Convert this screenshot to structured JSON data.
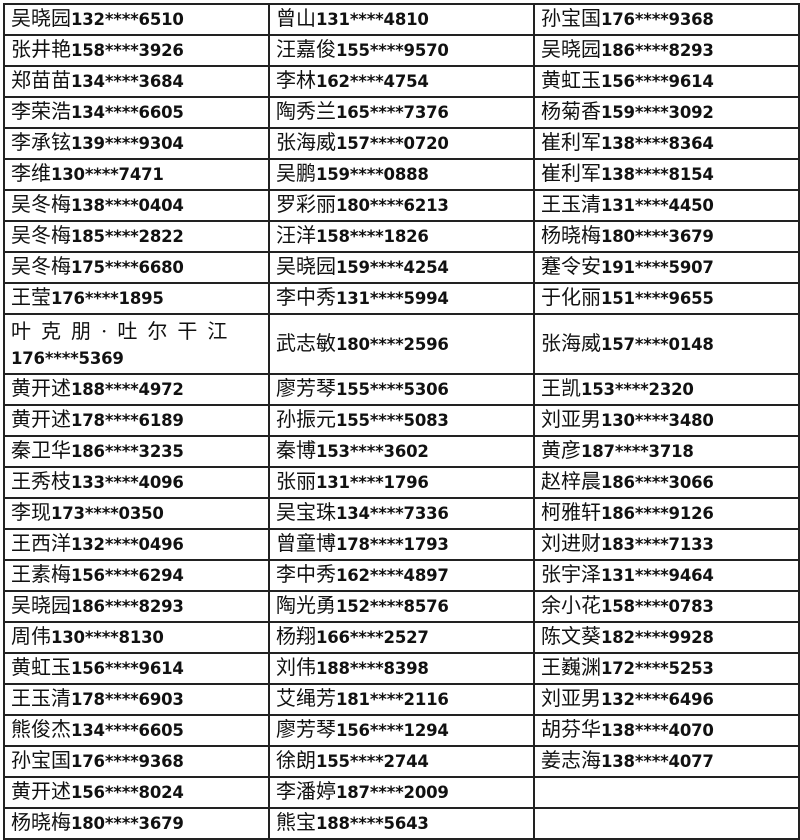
{
  "table": {
    "rows": [
      [
        {
          "name": "吴晓园",
          "phone": "132****6510"
        },
        {
          "name": "曾山",
          "phone": "131****4810"
        },
        {
          "name": "孙宝国",
          "phone": "176****9368"
        }
      ],
      [
        {
          "name": "张井艳",
          "phone": "158****3926"
        },
        {
          "name": "汪嘉俊",
          "phone": "155****9570"
        },
        {
          "name": "吴晓园",
          "phone": "186****8293"
        }
      ],
      [
        {
          "name": "郑苗苗",
          "phone": "134****3684"
        },
        {
          "name": "李林",
          "phone": "162****4754"
        },
        {
          "name": "黄虹玉",
          "phone": "156****9614"
        }
      ],
      [
        {
          "name": "李荣浩",
          "phone": "134****6605"
        },
        {
          "name": "陶秀兰",
          "phone": "165****7376"
        },
        {
          "name": "杨菊香",
          "phone": "159****3092"
        }
      ],
      [
        {
          "name": "李承铉",
          "phone": "139****9304"
        },
        {
          "name": "张海威",
          "phone": "157****0720"
        },
        {
          "name": "崔利军",
          "phone": "138****8364"
        }
      ],
      [
        {
          "name": "李维",
          "phone": "130****7471"
        },
        {
          "name": "吴鹏",
          "phone": "159****0888"
        },
        {
          "name": "崔利军",
          "phone": "138****8154"
        }
      ],
      [
        {
          "name": "吴冬梅",
          "phone": "138****0404"
        },
        {
          "name": "罗彩丽",
          "phone": "180****6213"
        },
        {
          "name": "王玉清",
          "phone": "131****4450"
        }
      ],
      [
        {
          "name": "吴冬梅",
          "phone": "185****2822"
        },
        {
          "name": "汪洋",
          "phone": "158****1826"
        },
        {
          "name": "杨晓梅",
          "phone": "180****3679"
        }
      ],
      [
        {
          "name": "吴冬梅",
          "phone": "175****6680"
        },
        {
          "name": "吴晓园",
          "phone": "159****4254"
        },
        {
          "name": "蹇令安",
          "phone": "191****5907"
        }
      ],
      [
        {
          "name": "王莹",
          "phone": "176****1895"
        },
        {
          "name": "李中秀",
          "phone": "131****5994"
        },
        {
          "name": "于化丽",
          "phone": "151****9655"
        }
      ],
      [
        {
          "name": "叶克朋·吐尔干江",
          "phone": "176****5369",
          "wrap": true
        },
        {
          "name": "武志敏",
          "phone": "180****2596"
        },
        {
          "name": "张海威",
          "phone": "157****0148"
        }
      ],
      [
        {
          "name": "黄开述",
          "phone": "188****4972"
        },
        {
          "name": "廖芳琴",
          "phone": "155****5306"
        },
        {
          "name": "王凯",
          "phone": "153****2320"
        }
      ],
      [
        {
          "name": "黄开述",
          "phone": "178****6189"
        },
        {
          "name": "孙振元",
          "phone": "155****5083"
        },
        {
          "name": "刘亚男",
          "phone": "130****3480"
        }
      ],
      [
        {
          "name": "秦卫华",
          "phone": "186****3235"
        },
        {
          "name": "秦博",
          "phone": "153****3602"
        },
        {
          "name": "黄彦",
          "phone": "187****3718"
        }
      ],
      [
        {
          "name": "王秀枝",
          "phone": "133****4096"
        },
        {
          "name": "张丽",
          "phone": "131****1796"
        },
        {
          "name": "赵梓晨",
          "phone": "186****3066"
        }
      ],
      [
        {
          "name": "李现",
          "phone": "173****0350"
        },
        {
          "name": "吴宝珠",
          "phone": "134****7336"
        },
        {
          "name": "柯雅轩",
          "phone": "186****9126"
        }
      ],
      [
        {
          "name": "王西洋",
          "phone": "132****0496"
        },
        {
          "name": "曾童博",
          "phone": "178****1793"
        },
        {
          "name": "刘进财",
          "phone": "183****7133"
        }
      ],
      [
        {
          "name": "王素梅",
          "phone": "156****6294"
        },
        {
          "name": "李中秀",
          "phone": "162****4897"
        },
        {
          "name": "张宇泽",
          "phone": "131****9464"
        }
      ],
      [
        {
          "name": "吴晓园",
          "phone": "186****8293"
        },
        {
          "name": "陶光勇",
          "phone": "152****8576"
        },
        {
          "name": "余小花",
          "phone": "158****0783"
        }
      ],
      [
        {
          "name": "周伟",
          "phone": "130****8130"
        },
        {
          "name": "杨翔",
          "phone": "166****2527"
        },
        {
          "name": "陈文葵",
          "phone": "182****9928"
        }
      ],
      [
        {
          "name": "黄虹玉",
          "phone": "156****9614"
        },
        {
          "name": "刘伟",
          "phone": "188****8398"
        },
        {
          "name": "王巍渊",
          "phone": "172****5253"
        }
      ],
      [
        {
          "name": "王玉清",
          "phone": "178****6903"
        },
        {
          "name": "艾绳芳",
          "phone": "181****2116"
        },
        {
          "name": "刘亚男",
          "phone": "132****6496"
        }
      ],
      [
        {
          "name": "熊俊杰",
          "phone": "134****6605"
        },
        {
          "name": "廖芳琴",
          "phone": "156****1294"
        },
        {
          "name": "胡芬华",
          "phone": "138****4070"
        }
      ],
      [
        {
          "name": "孙宝国",
          "phone": "176****9368"
        },
        {
          "name": "徐朗",
          "phone": "155****2744"
        },
        {
          "name": "姜志海",
          "phone": "138****4077"
        }
      ],
      [
        {
          "name": "黄开述",
          "phone": "156****8024"
        },
        {
          "name": "李潘婷",
          "phone": "187****2009"
        },
        null
      ],
      [
        {
          "name": "杨晓梅",
          "phone": "180****3679"
        },
        {
          "name": "熊宝",
          "phone": "188****5643"
        },
        null
      ]
    ]
  }
}
